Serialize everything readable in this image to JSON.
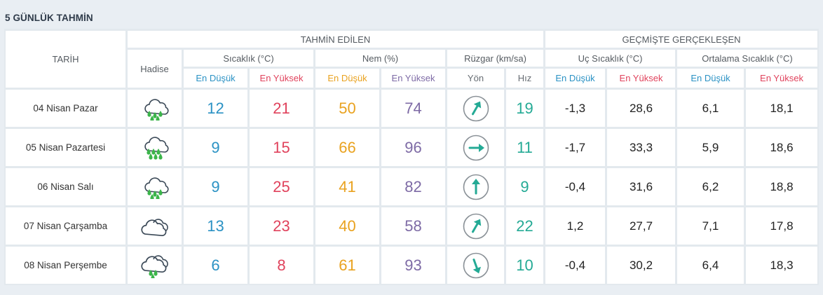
{
  "title": "5 GÜNLÜK TAHMİN",
  "headers": {
    "tarih": "TARİH",
    "tahmin": "TAHMİN EDİLEN",
    "gecmis": "GEÇMİŞTE GERÇEKLEŞEN",
    "hadise": "Hadise",
    "sicaklik": "Sıcaklık (°C)",
    "nem": "Nem (%)",
    "ruzgar": "Rüzgar (km/sa)",
    "uc": "Uç Sıcaklık (°C)",
    "ortalama": "Ortalama Sıcaklık (°C)",
    "en_dusuk": "En Düşük",
    "en_yuksek": "En Yüksek",
    "yon": "Yön",
    "hiz": "Hız"
  },
  "colors": {
    "blue": "#2b92c4",
    "red": "#e0425c",
    "orange": "#e9a21f",
    "purple": "#7d6aa5",
    "teal": "#24aa95"
  },
  "rows": [
    {
      "date": "04 Nisan Pazar",
      "icon": "rain-cloud-icon",
      "t_min": "12",
      "t_max": "21",
      "h_min": "50",
      "h_max": "74",
      "wind_dir_deg": 30,
      "wind_speed": "19",
      "ext_min": "-1,3",
      "ext_max": "28,6",
      "avg_min": "6,1",
      "avg_max": "18,1"
    },
    {
      "date": "05 Nisan Pazartesi",
      "icon": "heavy-rain-cloud-icon",
      "t_min": "9",
      "t_max": "15",
      "h_min": "66",
      "h_max": "96",
      "wind_dir_deg": 90,
      "wind_speed": "11",
      "ext_min": "-1,7",
      "ext_max": "33,3",
      "avg_min": "5,9",
      "avg_max": "18,6"
    },
    {
      "date": "06 Nisan Salı",
      "icon": "rain-cloud-icon",
      "t_min": "9",
      "t_max": "25",
      "h_min": "41",
      "h_max": "82",
      "wind_dir_deg": 0,
      "wind_speed": "9",
      "ext_min": "-0,4",
      "ext_max": "31,6",
      "avg_min": "6,2",
      "avg_max": "18,8"
    },
    {
      "date": "07 Nisan Çarşamba",
      "icon": "cloudy-icon",
      "t_min": "13",
      "t_max": "23",
      "h_min": "40",
      "h_max": "58",
      "wind_dir_deg": 30,
      "wind_speed": "22",
      "ext_min": "1,2",
      "ext_max": "27,7",
      "avg_min": "7,1",
      "avg_max": "17,8"
    },
    {
      "date": "08 Nisan Perşembe",
      "icon": "cloud-rain-icon",
      "t_min": "6",
      "t_max": "8",
      "h_min": "61",
      "h_max": "93",
      "wind_dir_deg": 160,
      "wind_speed": "10",
      "ext_min": "-0,4",
      "ext_max": "30,2",
      "avg_min": "6,4",
      "avg_max": "18,3"
    }
  ]
}
